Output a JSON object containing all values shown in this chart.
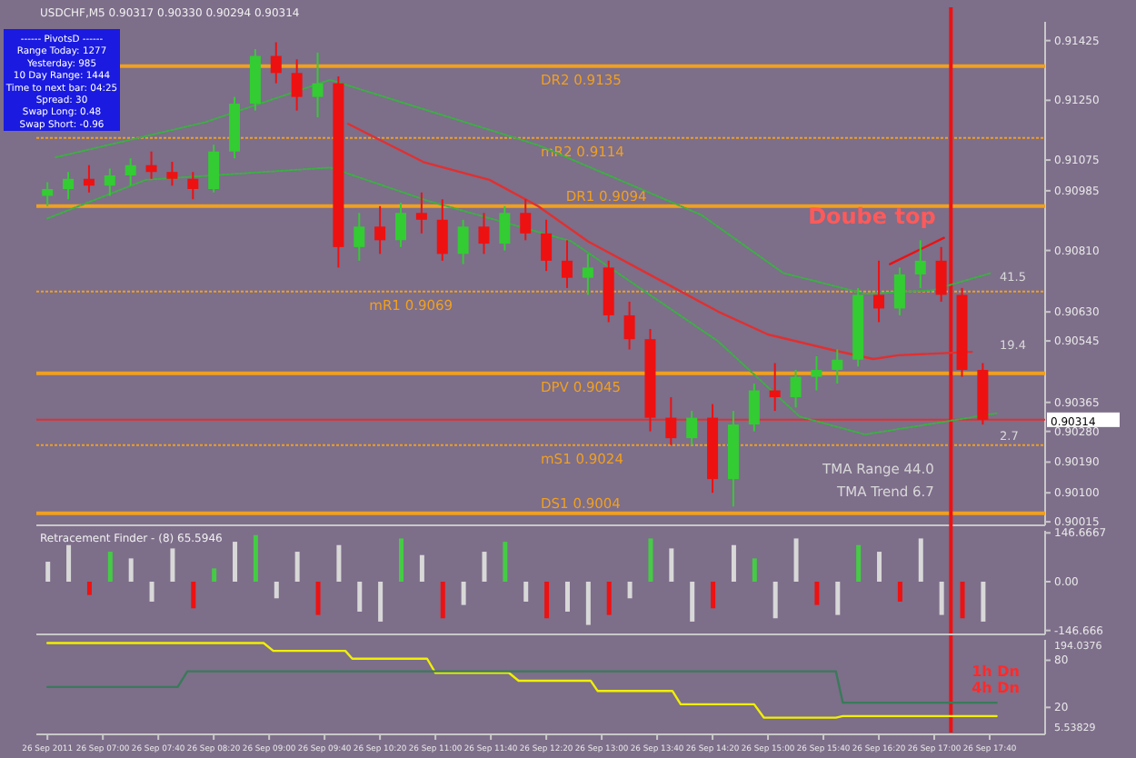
{
  "chart_data": [
    {
      "type": "candlestick",
      "title": "USDCHF,M5  0.90317 0.90330 0.90294 0.90314",
      "x": [
        "2011-09-26T06:20",
        "2011-09-26T06:35",
        "2011-09-26T06:50",
        "2011-09-26T07:05",
        "2011-09-26T07:20",
        "2011-09-26T07:35",
        "2011-09-26T07:50",
        "2011-09-26T08:05",
        "2011-09-26T08:20",
        "2011-09-26T08:35",
        "2011-09-26T08:50",
        "2011-09-26T09:05",
        "2011-09-26T09:20",
        "2011-09-26T09:35",
        "2011-09-26T09:50",
        "2011-09-26T10:05",
        "2011-09-26T10:20",
        "2011-09-26T10:35",
        "2011-09-26T10:50",
        "2011-09-26T11:05",
        "2011-09-26T11:20",
        "2011-09-26T11:35",
        "2011-09-26T11:50",
        "2011-09-26T12:05",
        "2011-09-26T12:20",
        "2011-09-26T12:35",
        "2011-09-26T12:50",
        "2011-09-26T13:05",
        "2011-09-26T13:20",
        "2011-09-26T13:35",
        "2011-09-26T13:50",
        "2011-09-26T14:05",
        "2011-09-26T14:20",
        "2011-09-26T14:35",
        "2011-09-26T14:50",
        "2011-09-26T15:05",
        "2011-09-26T15:20",
        "2011-09-26T15:35",
        "2011-09-26T15:50",
        "2011-09-26T16:05",
        "2011-09-26T16:20",
        "2011-09-26T16:35",
        "2011-09-26T16:50",
        "2011-09-26T17:05",
        "2011-09-26T17:20",
        "2011-09-26T17:35"
      ],
      "ohlc": [
        [
          0.9097,
          0.9101,
          0.9094,
          0.9099
        ],
        [
          0.9099,
          0.9104,
          0.9096,
          0.9102
        ],
        [
          0.9102,
          0.9106,
          0.9098,
          0.91
        ],
        [
          0.91,
          0.9105,
          0.9097,
          0.9103
        ],
        [
          0.9103,
          0.9108,
          0.91,
          0.9106
        ],
        [
          0.9106,
          0.911,
          0.9102,
          0.9104
        ],
        [
          0.9104,
          0.9107,
          0.91,
          0.9102
        ],
        [
          0.9102,
          0.9104,
          0.9096,
          0.9099
        ],
        [
          0.9099,
          0.9112,
          0.9098,
          0.911
        ],
        [
          0.911,
          0.9126,
          0.9108,
          0.9124
        ],
        [
          0.9124,
          0.914,
          0.9122,
          0.9138
        ],
        [
          0.9138,
          0.9142,
          0.913,
          0.9133
        ],
        [
          0.9133,
          0.9137,
          0.9122,
          0.9126
        ],
        [
          0.9126,
          0.9139,
          0.912,
          0.913
        ],
        [
          0.913,
          0.9132,
          0.9076,
          0.9082
        ],
        [
          0.9082,
          0.9092,
          0.9078,
          0.9088
        ],
        [
          0.9088,
          0.9094,
          0.908,
          0.9084
        ],
        [
          0.9084,
          0.9095,
          0.9082,
          0.9092
        ],
        [
          0.9092,
          0.9098,
          0.9086,
          0.909
        ],
        [
          0.909,
          0.9096,
          0.9078,
          0.908
        ],
        [
          0.908,
          0.909,
          0.9077,
          0.9088
        ],
        [
          0.9088,
          0.9092,
          0.908,
          0.9083
        ],
        [
          0.9083,
          0.9094,
          0.9081,
          0.9092
        ],
        [
          0.9092,
          0.9096,
          0.9084,
          0.9086
        ],
        [
          0.9086,
          0.909,
          0.9075,
          0.9078
        ],
        [
          0.9078,
          0.9084,
          0.907,
          0.9073
        ],
        [
          0.9073,
          0.908,
          0.9068,
          0.9076
        ],
        [
          0.9076,
          0.9078,
          0.906,
          0.9062
        ],
        [
          0.9062,
          0.9066,
          0.9052,
          0.9055
        ],
        [
          0.9055,
          0.9058,
          0.9028,
          0.9032
        ],
        [
          0.9032,
          0.9038,
          0.9024,
          0.9026
        ],
        [
          0.9026,
          0.9034,
          0.9024,
          0.9032
        ],
        [
          0.9032,
          0.9036,
          0.901,
          0.9014
        ],
        [
          0.9014,
          0.9034,
          0.9006,
          0.903
        ],
        [
          0.903,
          0.9042,
          0.9028,
          0.904
        ],
        [
          0.904,
          0.9048,
          0.9034,
          0.9038
        ],
        [
          0.9038,
          0.9046,
          0.9035,
          0.9044
        ],
        [
          0.9044,
          0.905,
          0.904,
          0.9046
        ],
        [
          0.9046,
          0.9052,
          0.9042,
          0.9049
        ],
        [
          0.9049,
          0.907,
          0.9047,
          0.9068
        ],
        [
          0.9068,
          0.9078,
          0.906,
          0.9064
        ],
        [
          0.9064,
          0.9076,
          0.9062,
          0.9074
        ],
        [
          0.9074,
          0.9084,
          0.907,
          0.9078
        ],
        [
          0.9078,
          0.9082,
          0.9066,
          0.9068
        ],
        [
          0.9068,
          0.907,
          0.9044,
          0.9046
        ],
        [
          0.9046,
          0.9048,
          0.903,
          0.90314
        ]
      ],
      "colors": [
        "#33cc33",
        "#33cc33",
        "#ee1111",
        "#33cc33",
        "#33cc33",
        "#ee1111",
        "#ee1111",
        "#ee1111",
        "#33cc33",
        "#33cc33",
        "#33cc33",
        "#ee1111",
        "#ee1111",
        "#33cc33",
        "#ee1111",
        "#33cc33",
        "#ee1111",
        "#33cc33",
        "#ee1111",
        "#ee1111",
        "#33cc33",
        "#ee1111",
        "#33cc33",
        "#ee1111",
        "#ee1111",
        "#ee1111",
        "#33cc33",
        "#ee1111",
        "#ee1111",
        "#ee1111",
        "#ee1111",
        "#33cc33",
        "#ee1111",
        "#33cc33",
        "#33cc33",
        "#ee1111",
        "#33cc33",
        "#33cc33",
        "#33cc33",
        "#33cc33",
        "#ee1111",
        "#33cc33",
        "#33cc33",
        "#ee1111",
        "#ee1111",
        "#ee1111"
      ],
      "series": [
        {
          "type": "line",
          "color": "#e03030",
          "line_style": "solid",
          "x": [
            "2011-09-26T09:57",
            "2011-09-26T10:52",
            "2011-09-26T11:39",
            "2011-09-26T12:14",
            "2011-09-26T12:50",
            "2011-09-26T13:37",
            "2011-09-26T14:24",
            "2011-09-26T15:00",
            "2011-09-26T15:47",
            "2011-09-26T16:16",
            "2011-09-26T16:34",
            "2011-09-26T17:27"
          ],
          "values": [
            0.91181,
            0.91068,
            0.91017,
            0.9094,
            0.90837,
            0.90734,
            0.90631,
            0.90564,
            0.90518,
            0.90492,
            0.90503,
            0.90513
          ]
        },
        {
          "type": "line",
          "color": "#3cb043",
          "line_style": "dotted",
          "x": [
            "2011-09-26T06:26",
            "2011-09-26T08:14",
            "2011-09-26T09:44",
            "2011-09-26T12:14",
            "2011-09-26T14:12",
            "2011-09-26T15:11",
            "2011-09-26T16:10",
            "2011-09-26T16:58",
            "2011-09-26T17:41"
          ],
          "values": [
            0.91083,
            0.91186,
            0.9131,
            0.91119,
            0.90914,
            0.90744,
            0.90683,
            0.90693,
            0.90744
          ]
        },
        {
          "type": "line",
          "color": "#3cb043",
          "line_style": "dotted",
          "x": [
            "2011-09-26T06:20",
            "2011-09-26T07:31",
            "2011-09-26T09:44",
            "2011-09-26T10:55",
            "2011-09-26T12:38",
            "2011-09-26T14:24",
            "2011-09-26T15:23",
            "2011-09-26T16:10",
            "2011-09-26T17:13",
            "2011-09-26T17:45"
          ],
          "values": [
            0.90904,
            0.91017,
            0.91053,
            0.90955,
            0.90837,
            0.90544,
            0.90323,
            0.90271,
            0.90312,
            0.90333
          ]
        },
        {
          "type": "line",
          "color": "#ee1111",
          "line_style": "solid",
          "x": [
            "2011-09-26T16:28",
            "2011-09-26T17:07"
          ],
          "values": [
            0.9077,
            0.90847
          ]
        }
      ],
      "ref_lines": [
        {
          "axis": "y",
          "value": 0.9135,
          "label": "DR2  0.9135",
          "color": "#f0a020",
          "line_style": "solid"
        },
        {
          "axis": "y",
          "value": 0.9114,
          "label": "mR2  0.9114",
          "color": "#f0a020",
          "line_style": "dotted"
        },
        {
          "axis": "y",
          "value": 0.9094,
          "label": "DR1  0.9094",
          "color": "#f0a020",
          "line_style": "solid"
        },
        {
          "axis": "y",
          "value": 0.9069,
          "label": "mR1  0.9069",
          "color": "#f0a020",
          "line_style": "dotted"
        },
        {
          "axis": "y",
          "value": 0.9045,
          "label": "DPV  0.9045",
          "color": "#f0a020",
          "line_style": "solid"
        },
        {
          "axis": "y",
          "value": 0.9024,
          "label": "mS1  0.9024",
          "color": "#f0a020",
          "line_style": "dotted"
        },
        {
          "axis": "y",
          "value": 0.9004,
          "label": "DS1  0.9004",
          "color": "#f0a020",
          "line_style": "solid"
        },
        {
          "axis": "y",
          "value": 0.90314,
          "label": "0.90314",
          "color": "#e03030",
          "line_style": "solid"
        },
        {
          "axis": "x",
          "value": "2011-09-26T17:12",
          "color": "#ee1111",
          "line_style": "solid"
        }
      ],
      "annotations": [
        "------  PivotsD  ------",
        "Range  Today:   1277",
        "Yesterday:   985",
        "10 Day Range:   1444",
        "Time to next bar:   04:25",
        "Spread:   30",
        "Swap  Long:   0.48",
        "Swap  Short:   -0.96",
        "TMA Range  44.0",
        "TMA Trend  6.7",
        "Doube top",
        "41.5",
        "19.4",
        "2.7"
      ],
      "xlim": [
        "2011-09-26T06:12",
        "2011-09-26T18:20"
      ],
      "ylim": [
        0.9001,
        0.9148
      ],
      "yticks": [
        {
          "value": 0.91425,
          "label": "0.91425"
        },
        {
          "value": 0.9125,
          "label": "0.91250"
        },
        {
          "value": 0.91075,
          "label": "0.91075"
        },
        {
          "value": 0.90985,
          "label": "0.90985"
        },
        {
          "value": 0.9081,
          "label": "0.90810"
        },
        {
          "value": 0.9063,
          "label": "0.90630"
        },
        {
          "value": 0.90545,
          "label": "0.90545"
        },
        {
          "value": 0.90365,
          "label": "0.90365"
        },
        {
          "value": 0.9028,
          "label": "0.90280"
        },
        {
          "value": 0.9019,
          "label": "0.90190"
        },
        {
          "value": 0.901,
          "label": "0.90100"
        },
        {
          "value": 0.90015,
          "label": "0.90015"
        }
      ],
      "tick_labels": "y"
    },
    {
      "type": "bar",
      "title": "Retracement Finder - (8) 65.5946",
      "x": [
        "2011-09-26T06:20",
        "2011-09-26T06:35",
        "2011-09-26T06:50",
        "2011-09-26T07:05",
        "2011-09-26T07:20",
        "2011-09-26T07:35",
        "2011-09-26T07:50",
        "2011-09-26T08:05",
        "2011-09-26T08:20",
        "2011-09-26T08:35",
        "2011-09-26T08:50",
        "2011-09-26T09:05",
        "2011-09-26T09:20",
        "2011-09-26T09:35",
        "2011-09-26T09:50",
        "2011-09-26T10:05",
        "2011-09-26T10:20",
        "2011-09-26T10:35",
        "2011-09-26T10:50",
        "2011-09-26T11:05",
        "2011-09-26T11:20",
        "2011-09-26T11:35",
        "2011-09-26T11:50",
        "2011-09-26T12:05",
        "2011-09-26T12:20",
        "2011-09-26T12:35",
        "2011-09-26T12:50",
        "2011-09-26T13:05",
        "2011-09-26T13:20",
        "2011-09-26T13:35",
        "2011-09-26T13:50",
        "2011-09-26T14:05",
        "2011-09-26T14:20",
        "2011-09-26T14:35",
        "2011-09-26T14:50",
        "2011-09-26T15:05",
        "2011-09-26T15:20",
        "2011-09-26T15:35",
        "2011-09-26T15:50",
        "2011-09-26T16:05",
        "2011-09-26T16:20",
        "2011-09-26T16:35",
        "2011-09-26T16:50",
        "2011-09-26T17:05",
        "2011-09-26T17:20",
        "2011-09-26T17:35"
      ],
      "values": [
        60,
        110,
        -40,
        90,
        70,
        -60,
        100,
        -80,
        40,
        120,
        140,
        -50,
        90,
        -100,
        110,
        -90,
        -120,
        130,
        80,
        -110,
        -70,
        90,
        120,
        -60,
        -110,
        -90,
        -130,
        -100,
        -50,
        130,
        100,
        -120,
        -80,
        110,
        70,
        -110,
        130,
        -70,
        -100,
        110,
        90,
        -60,
        130,
        -100,
        -110,
        -120
      ],
      "colors": [
        "#d8d8d8",
        "#d8d8d8",
        "#ee1111",
        "#44cc44",
        "#d8d8d8",
        "#d8d8d8",
        "#d8d8d8",
        "#ee1111",
        "#44cc44",
        "#d8d8d8",
        "#44cc44",
        "#d8d8d8",
        "#d8d8d8",
        "#ee1111",
        "#d8d8d8",
        "#d8d8d8",
        "#d8d8d8",
        "#44cc44",
        "#d8d8d8",
        "#ee1111",
        "#d8d8d8",
        "#d8d8d8",
        "#44cc44",
        "#d8d8d8",
        "#ee1111",
        "#d8d8d8",
        "#d8d8d8",
        "#ee1111",
        "#d8d8d8",
        "#44cc44",
        "#d8d8d8",
        "#d8d8d8",
        "#ee1111",
        "#d8d8d8",
        "#44cc44",
        "#d8d8d8",
        "#d8d8d8",
        "#ee1111",
        "#d8d8d8",
        "#44cc44",
        "#d8d8d8",
        "#ee1111",
        "#d8d8d8",
        "#d8d8d8",
        "#ee1111",
        "#d8d8d8"
      ],
      "xlim": [
        "2011-09-26T06:12",
        "2011-09-26T18:20"
      ],
      "ylim": [
        -153,
        153
      ],
      "yticks": [
        {
          "value": 146.6667,
          "label": "146.6667"
        },
        {
          "value": 0,
          "label": "0.00"
        },
        {
          "value": -146.666,
          "label": "-146.666"
        }
      ],
      "tick_labels": "y"
    },
    {
      "type": "line",
      "series": [
        {
          "color": "#f0f000",
          "x": [
            "2011-09-26T06:20",
            "2011-09-26T08:56",
            "2011-09-26T09:03",
            "2011-09-26T09:55",
            "2011-09-26T10:00",
            "2011-09-26T10:54",
            "2011-09-26T11:00",
            "2011-09-26T11:53",
            "2011-09-26T12:00",
            "2011-09-26T12:52",
            "2011-09-26T12:57",
            "2011-09-26T13:51",
            "2011-09-26T13:57",
            "2011-09-26T14:50",
            "2011-09-26T14:57",
            "2011-09-26T15:49",
            "2011-09-26T15:54",
            "2011-09-26T17:45"
          ],
          "values": [
            102,
            102,
            92,
            92,
            82,
            82,
            64,
            64,
            54,
            54,
            41,
            41,
            24,
            24,
            7,
            7,
            9,
            9
          ]
        },
        {
          "color": "#3a7a5a",
          "x": [
            "2011-09-26T06:20",
            "2011-09-26T07:54",
            "2011-09-26T08:01",
            "2011-09-26T15:49",
            "2011-09-26T15:54",
            "2011-09-26T17:45"
          ],
          "values": [
            46,
            46,
            66,
            66,
            26,
            26
          ]
        }
      ],
      "annotations": [
        "194.0376",
        "5.53829",
        "1h Dn",
        "4h Dn"
      ],
      "xlim": [
        "2011-09-26T06:12",
        "2011-09-26T18:20"
      ],
      "ylim": [
        -12,
        106
      ],
      "xticks": [
        {
          "value": "2011-09-26T06:20",
          "label": "26 Sep 2011"
        },
        {
          "value": "2011-09-26T07:00",
          "label": "26 Sep 07:00"
        },
        {
          "value": "2011-09-26T07:40",
          "label": "26 Sep 07:40"
        },
        {
          "value": "2011-09-26T08:20",
          "label": "26 Sep 08:20"
        },
        {
          "value": "2011-09-26T09:00",
          "label": "26 Sep 09:00"
        },
        {
          "value": "2011-09-26T09:40",
          "label": "26 Sep 09:40"
        },
        {
          "value": "2011-09-26T10:20",
          "label": "26 Sep 10:20"
        },
        {
          "value": "2011-09-26T11:00",
          "label": "26 Sep 11:00"
        },
        {
          "value": "2011-09-26T11:40",
          "label": "26 Sep 11:40"
        },
        {
          "value": "2011-09-26T12:20",
          "label": "26 Sep 12:20"
        },
        {
          "value": "2011-09-26T13:00",
          "label": "26 Sep 13:00"
        },
        {
          "value": "2011-09-26T13:40",
          "label": "26 Sep 13:40"
        },
        {
          "value": "2011-09-26T14:20",
          "label": "26 Sep 14:20"
        },
        {
          "value": "2011-09-26T15:00",
          "label": "26 Sep 15:00"
        },
        {
          "value": "2011-09-26T15:40",
          "label": "26 Sep 15:40"
        },
        {
          "value": "2011-09-26T16:20",
          "label": "26 Sep 16:20"
        },
        {
          "value": "2011-09-26T17:00",
          "label": "26 Sep 17:00"
        },
        {
          "value": "2011-09-26T17:40",
          "label": "26 Sep 17:40"
        }
      ],
      "yticks": [
        80,
        20
      ]
    }
  ]
}
